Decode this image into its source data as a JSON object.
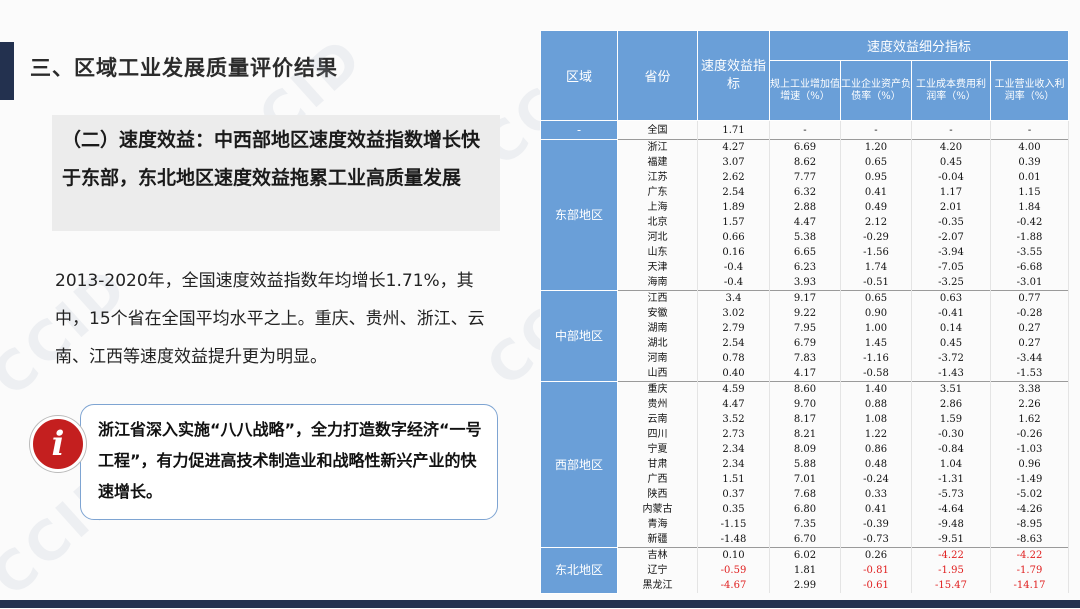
{
  "header": "三、区域工业发展质量评价结果",
  "subtitle": "（二）速度效益：中西部地区速度效益指数增长快于东部，东北地区速度效益拖累工业高质量发展",
  "body": "2013-2020年，全国速度效益指数年均增长1.71%，其中，15个省在全国平均水平之上。重庆、贵州、浙江、云南、江西等速度效益提升更为明显。",
  "note": "浙江省深入实施“八八战略”，全力打造数字经济“一号工程”，有力促进高技术制造业和战略性新兴产业的快速增长。",
  "info_icon": "i",
  "watermark": "CCID",
  "colors": {
    "header_blue": "#6a9fd8",
    "negative_red": "#e02020",
    "dark_navy": "#23314f",
    "icon_red": "#c41f1f"
  },
  "table": {
    "col_region": "区域",
    "col_province": "省份",
    "col_index": "速度效益指标",
    "group_header": "速度效益细分指标",
    "sub_cols": [
      "规上工业增加值增速（%）",
      "工业企业资产负债率（%）",
      "工业成本费用利润率（%）",
      "工业营业收入利润率（%）"
    ],
    "groups": [
      {
        "region": "-",
        "rows": [
          {
            "province": "全国",
            "index": "1.71",
            "v1": "-",
            "v2": "-",
            "v3": "-",
            "v4": "-"
          }
        ]
      },
      {
        "region": "东部地区",
        "rows": [
          {
            "province": "浙江",
            "index": "4.27",
            "v1": "6.69",
            "v2": "1.20",
            "v3": "4.20",
            "v4": "4.00"
          },
          {
            "province": "福建",
            "index": "3.07",
            "v1": "8.62",
            "v2": "0.65",
            "v3": "0.45",
            "v4": "0.39"
          },
          {
            "province": "江苏",
            "index": "2.62",
            "v1": "7.77",
            "v2": "0.95",
            "v3": "-0.04",
            "v4": "0.01"
          },
          {
            "province": "广东",
            "index": "2.54",
            "v1": "6.32",
            "v2": "0.41",
            "v3": "1.17",
            "v4": "1.15"
          },
          {
            "province": "上海",
            "index": "1.89",
            "v1": "2.88",
            "v2": "0.49",
            "v3": "2.01",
            "v4": "1.84"
          },
          {
            "province": "北京",
            "index": "1.57",
            "v1": "4.47",
            "v2": "2.12",
            "v3": "-0.35",
            "v4": "-0.42"
          },
          {
            "province": "河北",
            "index": "0.66",
            "v1": "5.38",
            "v2": "-0.29",
            "v3": "-2.07",
            "v4": "-1.88"
          },
          {
            "province": "山东",
            "index": "0.16",
            "v1": "6.65",
            "v2": "-1.56",
            "v3": "-3.94",
            "v4": "-3.55"
          },
          {
            "province": "天津",
            "index": "-0.4",
            "v1": "6.23",
            "v2": "1.74",
            "v3": "-7.05",
            "v4": "-6.68"
          },
          {
            "province": "海南",
            "index": "-0.4",
            "v1": "3.93",
            "v2": "-0.51",
            "v3": "-3.25",
            "v4": "-3.01"
          }
        ]
      },
      {
        "region": "中部地区",
        "rows": [
          {
            "province": "江西",
            "index": "3.4",
            "v1": "9.17",
            "v2": "0.65",
            "v3": "0.63",
            "v4": "0.77"
          },
          {
            "province": "安徽",
            "index": "3.02",
            "v1": "9.22",
            "v2": "0.90",
            "v3": "-0.41",
            "v4": "-0.28"
          },
          {
            "province": "湖南",
            "index": "2.79",
            "v1": "7.95",
            "v2": "1.00",
            "v3": "0.14",
            "v4": "0.27"
          },
          {
            "province": "湖北",
            "index": "2.54",
            "v1": "6.79",
            "v2": "1.45",
            "v3": "0.45",
            "v4": "0.27"
          },
          {
            "province": "河南",
            "index": "0.78",
            "v1": "7.83",
            "v2": "-1.16",
            "v3": "-3.72",
            "v4": "-3.44"
          },
          {
            "province": "山西",
            "index": "0.40",
            "v1": "4.17",
            "v2": "-0.58",
            "v3": "-1.43",
            "v4": "-1.53"
          }
        ]
      },
      {
        "region": "西部地区",
        "rows": [
          {
            "province": "重庆",
            "index": "4.59",
            "v1": "8.60",
            "v2": "1.40",
            "v3": "3.51",
            "v4": "3.38"
          },
          {
            "province": "贵州",
            "index": "4.47",
            "v1": "9.70",
            "v2": "0.88",
            "v3": "2.86",
            "v4": "2.26"
          },
          {
            "province": "云南",
            "index": "3.52",
            "v1": "8.17",
            "v2": "1.08",
            "v3": "1.59",
            "v4": "1.62"
          },
          {
            "province": "四川",
            "index": "2.73",
            "v1": "8.21",
            "v2": "1.22",
            "v3": "-0.30",
            "v4": "-0.26"
          },
          {
            "province": "宁夏",
            "index": "2.34",
            "v1": "8.09",
            "v2": "0.86",
            "v3": "-0.84",
            "v4": "-1.03"
          },
          {
            "province": "甘肃",
            "index": "2.34",
            "v1": "5.88",
            "v2": "0.48",
            "v3": "1.04",
            "v4": "0.96"
          },
          {
            "province": "广西",
            "index": "1.51",
            "v1": "7.01",
            "v2": "-0.24",
            "v3": "-1.31",
            "v4": "-1.49"
          },
          {
            "province": "陕西",
            "index": "0.37",
            "v1": "7.68",
            "v2": "0.33",
            "v3": "-5.73",
            "v4": "-5.02"
          },
          {
            "province": "内蒙古",
            "index": "0.35",
            "v1": "6.80",
            "v2": "0.41",
            "v3": "-4.64",
            "v4": "-4.26"
          },
          {
            "province": "青海",
            "index": "-1.15",
            "v1": "7.35",
            "v2": "-0.39",
            "v3": "-9.48",
            "v4": "-8.95"
          },
          {
            "province": "新疆",
            "index": "-1.48",
            "v1": "6.70",
            "v2": "-0.73",
            "v3": "-9.51",
            "v4": "-8.63"
          }
        ]
      },
      {
        "region": "东北地区",
        "rows": [
          {
            "province": "吉林",
            "index": "0.10",
            "v1": "6.02",
            "v2": "0.26",
            "v3": "-4.22",
            "v4": "-4.22",
            "red": [
              "v3",
              "v4"
            ]
          },
          {
            "province": "辽宁",
            "index": "-0.59",
            "v1": "1.81",
            "v2": "-0.81",
            "v3": "-1.95",
            "v4": "-1.79",
            "red": [
              "index",
              "v2",
              "v3",
              "v4"
            ]
          },
          {
            "province": "黑龙江",
            "index": "-4.67",
            "v1": "2.99",
            "v2": "-0.61",
            "v3": "-15.47",
            "v4": "-14.17",
            "red": [
              "index",
              "v2",
              "v3",
              "v4"
            ]
          }
        ]
      }
    ]
  }
}
